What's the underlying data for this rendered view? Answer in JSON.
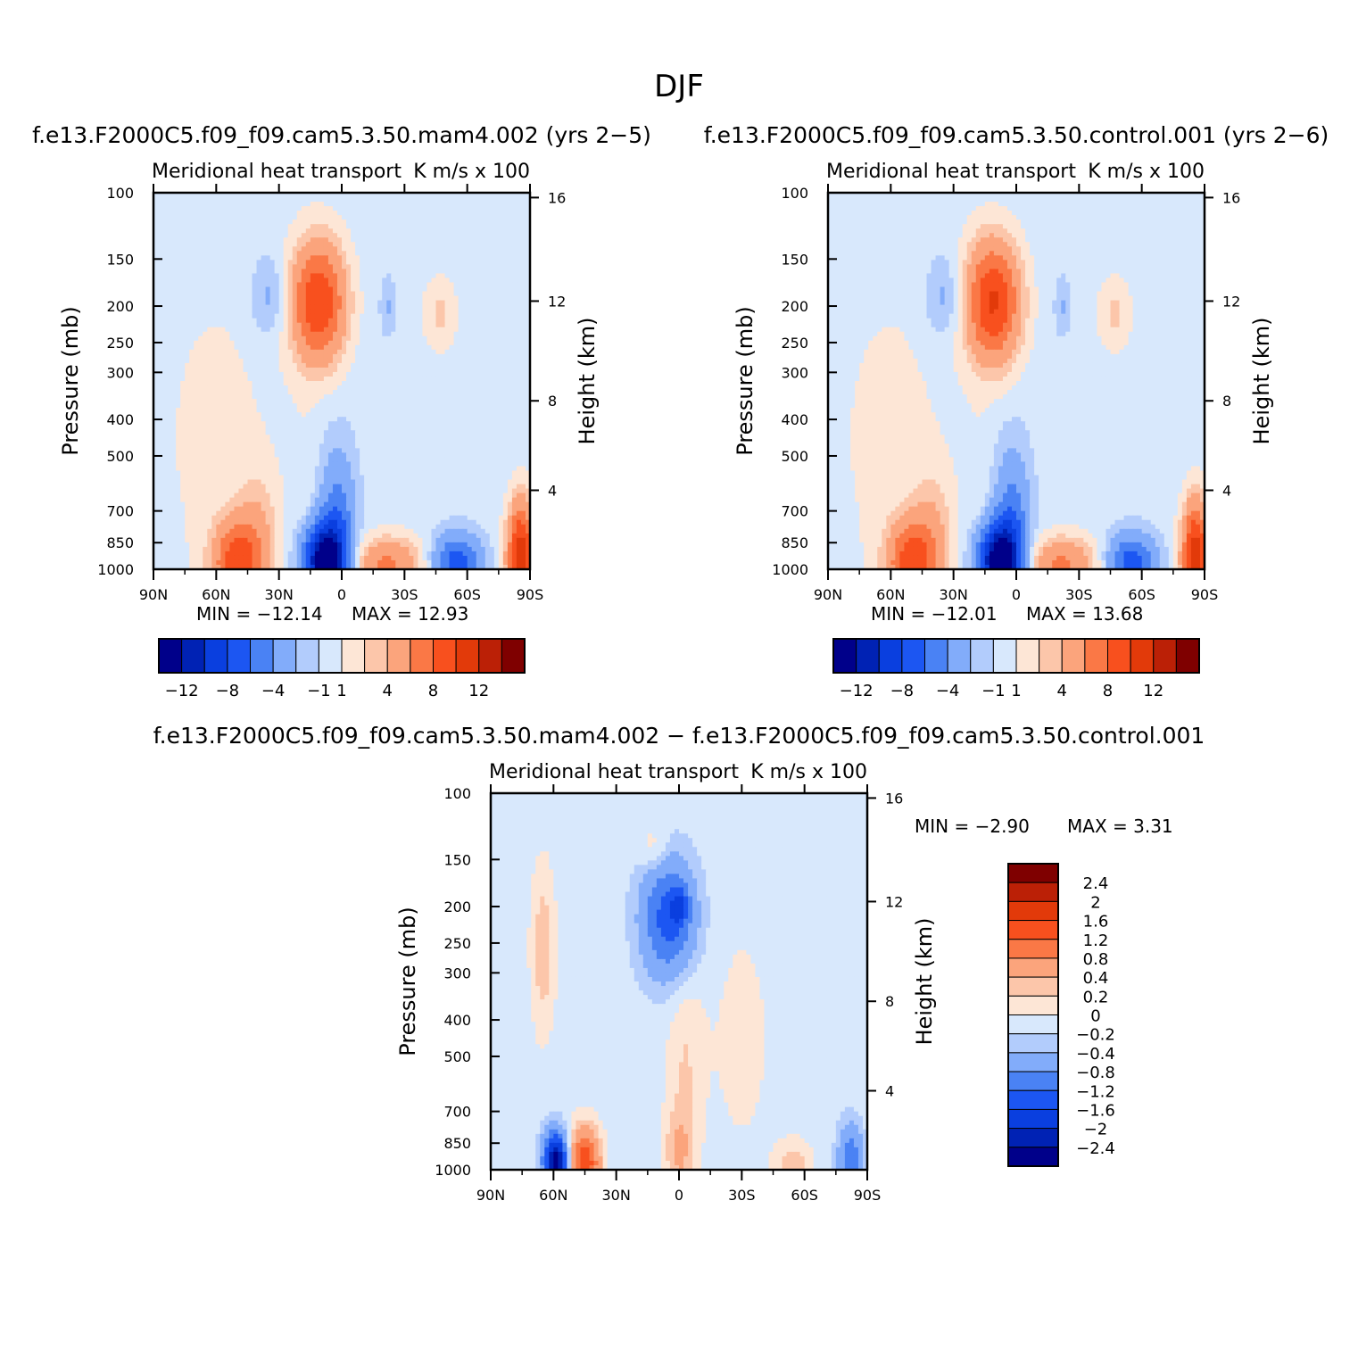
{
  "figure": {
    "title": "DJF",
    "diff_title": "f.e13.F2000C5.f09_f09.cam5.3.50.mam4.002 − f.e13.F2000C5.f09_f09.cam5.3.50.control.001"
  },
  "colors": {
    "main_levels": [
      "#00008a",
      "#0022b4",
      "#0a3fdf",
      "#1c56f2",
      "#4a82f4",
      "#82acfa",
      "#b2ccfc",
      "#d8e8fc",
      "#fde6d6",
      "#fcc6aa",
      "#fba47c",
      "#fa7846",
      "#f8501e",
      "#e23a0a",
      "#bb2006",
      "#7f0000"
    ],
    "diff_levels": [
      "#00008a",
      "#0022b4",
      "#0a3fdf",
      "#1c56f2",
      "#4a82f4",
      "#82acfa",
      "#b2ccfc",
      "#d8e8fc",
      "#fde6d6",
      "#fcc6aa",
      "#fba47c",
      "#fa7846",
      "#f8501e",
      "#e23a0a",
      "#bb2006",
      "#7f0000"
    ]
  },
  "chart_data": [
    {
      "type": "heatmap",
      "name": "panel-mam4",
      "title": "f.e13.F2000C5.f09_f09.cam5.3.50.mam4.002 (yrs 2−5)",
      "subtitle_left": "Meridional heat transport",
      "subtitle_right": "K m/s x 100",
      "ylabel": "Pressure (mb)",
      "ylabel_right": "Height (km)",
      "x_ticks": [
        "90N",
        "60N",
        "30N",
        "0",
        "30S",
        "60S",
        "90S"
      ],
      "x_range": [
        90,
        -90
      ],
      "y_ticks": [
        "100",
        "150",
        "200",
        "250",
        "300",
        "400",
        "500",
        "700",
        "850",
        "1000"
      ],
      "y_range": [
        100,
        1000
      ],
      "y_scale": "log",
      "height_ticks": [
        "16",
        "12",
        "8",
        "4"
      ],
      "min_label": "MIN = −12.14",
      "max_label": "MAX = 12.93",
      "min": -12.14,
      "max": 12.93,
      "colorbar_ticks": [
        "−12",
        "−8",
        "−4",
        "−1",
        "1",
        "4",
        "8",
        "12"
      ],
      "features": [
        {
          "lat": 35,
          "p": 190,
          "amp": -2.0,
          "wlat": 6,
          "wp": 0.18
        },
        {
          "lat": 11,
          "p": 195,
          "amp": 8.5,
          "wlat": 9,
          "wp": 0.26
        },
        {
          "lat": -22,
          "p": 200,
          "amp": -1.5,
          "wlat": 2.5,
          "wp": 0.12
        },
        {
          "lat": -47,
          "p": 210,
          "amp": 1.8,
          "wlat": 6,
          "wp": 0.16
        },
        {
          "lat": 60,
          "p": 450,
          "amp": 0.8,
          "wlat": 25,
          "wp": 0.9
        },
        {
          "lat": 18,
          "p": 700,
          "amp": 0.5,
          "wlat": 4,
          "wp": 0.5
        },
        {
          "lat": 2,
          "p": 820,
          "amp": -5.0,
          "wlat": 6,
          "wp": 0.35
        },
        {
          "lat": 9,
          "p": 950,
          "amp": -12.0,
          "wlat": 7,
          "wp": 0.16
        },
        {
          "lat": 50,
          "p": 960,
          "amp": 7.5,
          "wlat": 8,
          "wp": 0.18
        },
        {
          "lat": 40,
          "p": 780,
          "amp": 2.0,
          "wlat": 7,
          "wp": 0.25
        },
        {
          "lat": -22,
          "p": 975,
          "amp": 5.0,
          "wlat": 12,
          "wp": 0.12
        },
        {
          "lat": -55,
          "p": 960,
          "amp": -6.5,
          "wlat": 8,
          "wp": 0.12
        },
        {
          "lat": -86,
          "p": 940,
          "amp": 9.0,
          "wlat": 5,
          "wp": 0.22
        },
        {
          "lat": -85,
          "p": 760,
          "amp": 1.5,
          "wlat": 3,
          "wp": 0.2
        }
      ],
      "background": -0.6
    },
    {
      "type": "heatmap",
      "name": "panel-control",
      "title": "f.e13.F2000C5.f09_f09.cam5.3.50.control.001 (yrs 2−6)",
      "subtitle_left": "Meridional heat transport",
      "subtitle_right": "K m/s x 100",
      "ylabel": "Pressure (mb)",
      "ylabel_right": "Height (km)",
      "x_ticks": [
        "90N",
        "60N",
        "30N",
        "0",
        "30S",
        "60S",
        "90S"
      ],
      "x_range": [
        90,
        -90
      ],
      "y_ticks": [
        "100",
        "150",
        "200",
        "250",
        "300",
        "400",
        "500",
        "700",
        "850",
        "1000"
      ],
      "y_range": [
        100,
        1000
      ],
      "y_scale": "log",
      "height_ticks": [
        "16",
        "12",
        "8",
        "4"
      ],
      "min_label": "MIN = −12.01",
      "max_label": "MAX = 13.68",
      "min": -12.01,
      "max": 13.68,
      "colorbar_ticks": [
        "−12",
        "−8",
        "−4",
        "−1",
        "1",
        "4",
        "8",
        "12"
      ],
      "features": [
        {
          "lat": 35,
          "p": 190,
          "amp": -2.0,
          "wlat": 6,
          "wp": 0.18
        },
        {
          "lat": 11,
          "p": 195,
          "amp": 8.8,
          "wlat": 9,
          "wp": 0.26
        },
        {
          "lat": -22,
          "p": 200,
          "amp": -1.5,
          "wlat": 2.5,
          "wp": 0.12
        },
        {
          "lat": -47,
          "p": 210,
          "amp": 1.8,
          "wlat": 6,
          "wp": 0.16
        },
        {
          "lat": 60,
          "p": 450,
          "amp": 0.8,
          "wlat": 25,
          "wp": 0.9
        },
        {
          "lat": 18,
          "p": 700,
          "amp": 0.5,
          "wlat": 4,
          "wp": 0.5
        },
        {
          "lat": 2,
          "p": 820,
          "amp": -5.0,
          "wlat": 6,
          "wp": 0.35
        },
        {
          "lat": 9,
          "p": 950,
          "amp": -12.0,
          "wlat": 7,
          "wp": 0.16
        },
        {
          "lat": 50,
          "p": 960,
          "amp": 7.5,
          "wlat": 8,
          "wp": 0.18
        },
        {
          "lat": 40,
          "p": 780,
          "amp": 2.0,
          "wlat": 7,
          "wp": 0.25
        },
        {
          "lat": -22,
          "p": 975,
          "amp": 5.0,
          "wlat": 12,
          "wp": 0.12
        },
        {
          "lat": -55,
          "p": 960,
          "amp": -6.5,
          "wlat": 8,
          "wp": 0.12
        },
        {
          "lat": -86,
          "p": 940,
          "amp": 9.0,
          "wlat": 5,
          "wp": 0.22
        },
        {
          "lat": -85,
          "p": 760,
          "amp": 1.5,
          "wlat": 3,
          "wp": 0.2
        }
      ],
      "background": -0.6
    },
    {
      "type": "heatmap",
      "name": "panel-diff",
      "title": "",
      "subtitle_left": "Meridional heat transport",
      "subtitle_right": "K m/s x 100",
      "ylabel": "Pressure (mb)",
      "ylabel_right": "Height (km)",
      "x_ticks": [
        "90N",
        "60N",
        "30N",
        "0",
        "30S",
        "60S",
        "90S"
      ],
      "x_range": [
        90,
        -90
      ],
      "y_ticks": [
        "100",
        "150",
        "200",
        "250",
        "300",
        "400",
        "500",
        "700",
        "850",
        "1000"
      ],
      "y_range": [
        100,
        1000
      ],
      "y_scale": "log",
      "height_ticks": [
        "16",
        "12",
        "8",
        "4"
      ],
      "min_label": "MIN = −2.90",
      "max_label": "MAX = 3.31",
      "min": -2.9,
      "max": 3.31,
      "colorbar_ticks": [
        "2.4",
        "2",
        "1.6",
        "1.2",
        "0.8",
        "0.4",
        "0.2",
        "0",
        "−0.2",
        "−0.4",
        "−0.8",
        "−1.2",
        "−1.6",
        "−2",
        "−2.4"
      ],
      "features": [
        {
          "lat": 5,
          "p": 215,
          "amp": -1.3,
          "wlat": 9,
          "wp": 0.25
        },
        {
          "lat": 0,
          "p": 200,
          "amp": -0.8,
          "wlat": 3,
          "wp": 0.08
        },
        {
          "lat": 65,
          "p": 260,
          "amp": 0.45,
          "wlat": 4,
          "wp": 0.35
        },
        {
          "lat": 12,
          "p": 140,
          "amp": 0.3,
          "wlat": 5,
          "wp": 0.1
        },
        {
          "lat": -3,
          "p": 500,
          "amp": 0.3,
          "wlat": 6,
          "wp": 0.4
        },
        {
          "lat": -30,
          "p": 450,
          "amp": 0.15,
          "wlat": 12,
          "wp": 0.6
        },
        {
          "lat": 59,
          "p": 950,
          "amp": -2.6,
          "wlat": 4,
          "wp": 0.12
        },
        {
          "lat": 45,
          "p": 960,
          "amp": 1.6,
          "wlat": 5,
          "wp": 0.15
        },
        {
          "lat": 0,
          "p": 900,
          "amp": 0.5,
          "wlat": 5,
          "wp": 0.2
        },
        {
          "lat": -55,
          "p": 960,
          "amp": 0.4,
          "wlat": 6,
          "wp": 0.1
        },
        {
          "lat": -82,
          "p": 940,
          "amp": -1.0,
          "wlat": 4,
          "wp": 0.15
        }
      ],
      "background": -0.1
    }
  ],
  "diff_levels": [
    "−2.4",
    "−2",
    "−1.6",
    "−1.2",
    "−0.8",
    "−0.4",
    "−0.2",
    "0",
    "0.2",
    "0.4",
    "0.8",
    "1.2",
    "1.6",
    "2",
    "2.4"
  ]
}
